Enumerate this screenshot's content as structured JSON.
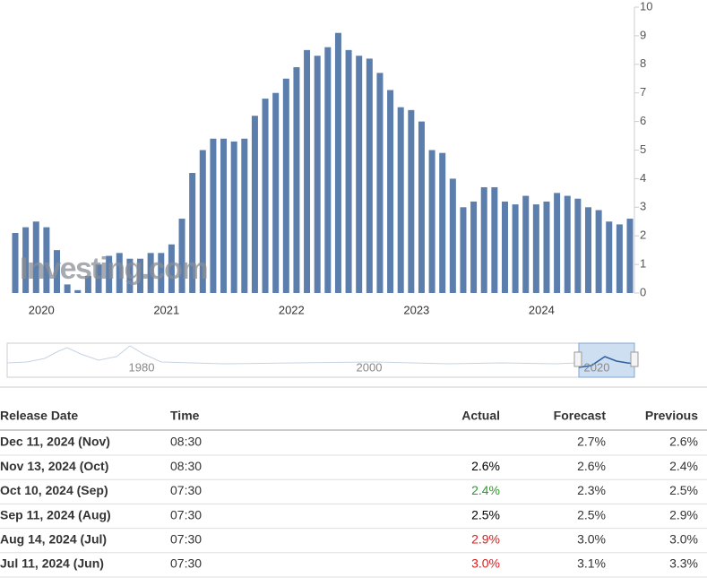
{
  "chart_data": {
    "type": "bar",
    "watermark": "Investing.com",
    "color": "#5b7eac",
    "categories": [
      null,
      null,
      "2020",
      null,
      null,
      null,
      null,
      null,
      null,
      null,
      null,
      null,
      null,
      null,
      "2021",
      null,
      null,
      null,
      null,
      null,
      null,
      null,
      null,
      null,
      null,
      null,
      "2022",
      null,
      null,
      null,
      null,
      null,
      null,
      null,
      null,
      null,
      null,
      null,
      "2023",
      null,
      null,
      null,
      null,
      null,
      null,
      null,
      null,
      null,
      null,
      null,
      "2024",
      null,
      null,
      null,
      null,
      null,
      null,
      null,
      null,
      null
    ],
    "values": [
      2.1,
      2.3,
      2.5,
      2.3,
      1.5,
      0.3,
      0.1,
      0.6,
      1.0,
      1.3,
      1.4,
      1.2,
      1.2,
      1.4,
      1.4,
      1.7,
      2.6,
      4.2,
      5.0,
      5.4,
      5.4,
      5.3,
      5.4,
      6.2,
      6.8,
      7.0,
      7.5,
      7.9,
      8.5,
      8.3,
      8.6,
      9.1,
      8.5,
      8.3,
      8.2,
      7.7,
      7.1,
      6.5,
      6.4,
      6.0,
      5.0,
      4.9,
      4.0,
      3.0,
      3.2,
      3.7,
      3.7,
      3.2,
      3.1,
      3.4,
      3.1,
      3.2,
      3.5,
      3.4,
      3.3,
      3.0,
      2.9,
      2.5,
      2.4,
      2.6
    ],
    "ylim": [
      0,
      10
    ],
    "yticks": [
      0,
      1,
      2,
      3,
      4,
      5,
      6,
      7,
      8,
      9,
      10
    ],
    "navigator_labels": [
      "1980",
      "2000",
      "2020"
    ]
  },
  "table": {
    "headers": [
      "Release Date",
      "Time",
      "Actual",
      "Forecast",
      "Previous"
    ],
    "rows": [
      [
        "Dec 11, 2024 (Nov)",
        "08:30",
        "",
        "2.7%",
        "2.6%"
      ],
      [
        "Nov 13, 2024 (Oct)",
        "08:30",
        "2.6%",
        "2.6%",
        "2.4%"
      ],
      [
        "Oct 10, 2024 (Sep)",
        "07:30",
        "2.4%",
        "2.3%",
        "2.5%"
      ],
      [
        "Sep 11, 2024 (Aug)",
        "07:30",
        "2.5%",
        "2.5%",
        "2.9%"
      ],
      [
        "Aug 14, 2024 (Jul)",
        "07:30",
        "2.9%",
        "3.0%",
        "3.0%"
      ],
      [
        "Jul 11, 2024 (Jun)",
        "07:30",
        "3.0%",
        "3.1%",
        "3.3%"
      ]
    ],
    "actual_colors": [
      "#000000",
      "#000000",
      "#2a9a2a",
      "#000000",
      "#d91e1e",
      "#d91e1e"
    ]
  }
}
